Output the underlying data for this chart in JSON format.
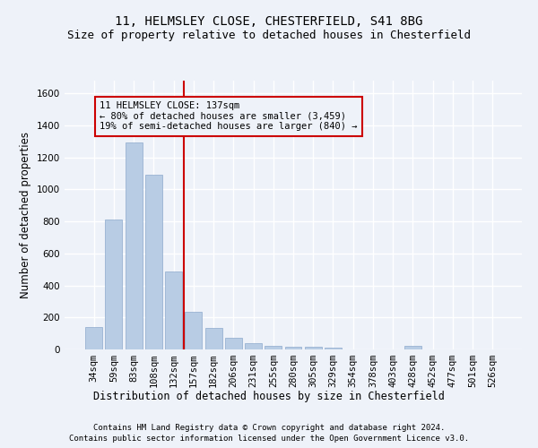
{
  "title1": "11, HELMSLEY CLOSE, CHESTERFIELD, S41 8BG",
  "title2": "Size of property relative to detached houses in Chesterfield",
  "xlabel": "Distribution of detached houses by size in Chesterfield",
  "ylabel": "Number of detached properties",
  "categories": [
    "34sqm",
    "59sqm",
    "83sqm",
    "108sqm",
    "132sqm",
    "157sqm",
    "182sqm",
    "206sqm",
    "231sqm",
    "255sqm",
    "280sqm",
    "305sqm",
    "329sqm",
    "354sqm",
    "378sqm",
    "403sqm",
    "428sqm",
    "452sqm",
    "477sqm",
    "501sqm",
    "526sqm"
  ],
  "values": [
    140,
    810,
    1295,
    1090,
    490,
    235,
    135,
    75,
    42,
    25,
    18,
    15,
    10,
    0,
    0,
    0,
    20,
    0,
    0,
    0,
    0
  ],
  "bar_color": "#b8cce4",
  "bar_edge_color": "#8eaacc",
  "vline_x_idx": 4,
  "vline_color": "#cc0000",
  "annotation_title": "11 HELMSLEY CLOSE: 137sqm",
  "annotation_line1": "← 80% of detached houses are smaller (3,459)",
  "annotation_line2": "19% of semi-detached houses are larger (840) →",
  "box_color": "#cc0000",
  "ylim": [
    0,
    1680
  ],
  "yticks": [
    0,
    200,
    400,
    600,
    800,
    1000,
    1200,
    1400,
    1600
  ],
  "footer1": "Contains HM Land Registry data © Crown copyright and database right 2024.",
  "footer2": "Contains public sector information licensed under the Open Government Licence v3.0.",
  "bg_color": "#eef2f9",
  "grid_color": "#ffffff",
  "title_fontsize": 10,
  "subtitle_fontsize": 9,
  "tick_fontsize": 7.5,
  "axis_label_fontsize": 8.5,
  "footer_fontsize": 6.5
}
